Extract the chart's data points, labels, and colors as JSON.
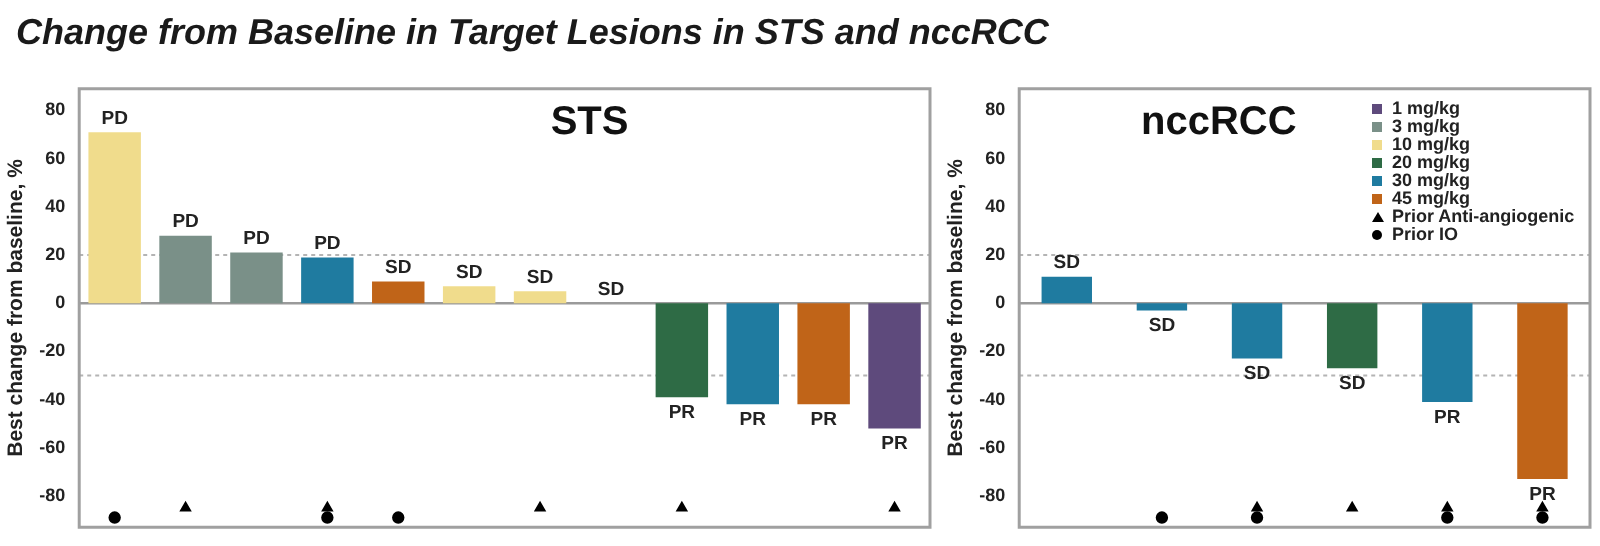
{
  "chart_data": [
    {
      "type": "bar",
      "title": "Change from Baseline in Target Lesions in STS and nccRCC",
      "subtitle": "STS",
      "ylabel": "Best change from baseline, %",
      "categories": [
        null,
        null,
        null,
        null,
        null,
        null,
        null,
        null,
        null,
        null,
        null,
        null
      ],
      "series": [
        {
          "values": [
            71,
            28,
            21,
            19,
            9,
            7,
            5,
            0,
            -39,
            -42,
            -42,
            -52
          ],
          "colors": [
            "#f0dc8c",
            "#7a9088",
            "#7a9088",
            "#1f7ba0",
            "#c06418",
            "#f0dc8c",
            "#f0dc8c",
            "#f0dc8c",
            "#2e6b45",
            "#1f7ba0",
            "#c06418",
            "#5e4a7c"
          ],
          "value_labels": [
            "PD",
            "PD",
            "PD",
            "PD",
            "SD",
            "SD",
            "SD",
            "SD",
            "PR",
            "PR",
            "PR",
            "PR"
          ]
        },
        {
          "type": "scatter",
          "marker": "triangle",
          "color": "#000000",
          "values": [
            null,
            -85,
            null,
            -85,
            null,
            null,
            -85,
            null,
            -85,
            null,
            null,
            -85
          ]
        },
        {
          "type": "scatter",
          "marker": "circle",
          "color": "#000000",
          "values": [
            -89,
            null,
            null,
            -89,
            -89,
            null,
            null,
            null,
            null,
            null,
            null,
            null
          ]
        }
      ],
      "ylim": [
        -93,
        89
      ],
      "yticks": [
        -80,
        -60,
        -40,
        -20,
        0,
        20,
        40,
        60,
        80
      ],
      "ref_lines": [
        {
          "axis": "y",
          "value": 20,
          "color": "#b4b4b4",
          "line_style": "dotted"
        },
        {
          "axis": "y",
          "value": -30,
          "color": "#b4b4b4",
          "line_style": "dotted"
        }
      ]
    },
    {
      "type": "bar",
      "subtitle": "nccRCC",
      "ylabel": "Best change from baseline, %",
      "stacked": true,
      "legend": "top right",
      "categories": [
        null,
        null,
        null,
        null,
        null,
        null
      ],
      "series": [
        {
          "name": "1 mg/kg",
          "color": "#5e4a7c",
          "values": [
            null,
            null,
            null,
            null,
            null,
            null
          ]
        },
        {
          "name": "3 mg/kg",
          "color": "#7a9088",
          "values": [
            null,
            null,
            null,
            null,
            null,
            null
          ]
        },
        {
          "name": "10 mg/kg",
          "color": "#f0dc8c",
          "values": [
            null,
            null,
            null,
            null,
            null,
            null
          ]
        },
        {
          "name": "20 mg/kg",
          "color": "#2e6b45",
          "values": [
            null,
            null,
            null,
            -27,
            null,
            null
          ],
          "value_labels": [
            null,
            null,
            null,
            "SD",
            null,
            null
          ]
        },
        {
          "name": "30 mg/kg",
          "color": "#1f7ba0",
          "values": [
            11,
            -3,
            -23,
            null,
            -41,
            null
          ],
          "value_labels": [
            "SD",
            "SD",
            "SD",
            null,
            "PR",
            null
          ]
        },
        {
          "name": "45 mg/kg",
          "color": "#c06418",
          "values": [
            null,
            null,
            null,
            null,
            null,
            -73
          ],
          "value_labels": [
            null,
            null,
            null,
            null,
            null,
            "PR"
          ]
        },
        {
          "type": "scatter",
          "name": "Prior Anti-angiogenic",
          "marker": "triangle",
          "color": "#000000",
          "values": [
            null,
            null,
            -85,
            -85,
            -85,
            -85
          ]
        },
        {
          "type": "scatter",
          "name": "Prior IO",
          "marker": "circle",
          "color": "#000000",
          "values": [
            null,
            -89,
            -89,
            null,
            -89,
            -89
          ]
        }
      ],
      "ylim": [
        -93,
        89
      ],
      "yticks": [
        -80,
        -60,
        -40,
        -20,
        0,
        20,
        40,
        60,
        80
      ],
      "ref_lines": [
        {
          "axis": "y",
          "value": 20,
          "color": "#b4b4b4",
          "line_style": "dotted"
        },
        {
          "axis": "y",
          "value": -30,
          "color": "#b4b4b4",
          "line_style": "dotted"
        }
      ]
    }
  ]
}
